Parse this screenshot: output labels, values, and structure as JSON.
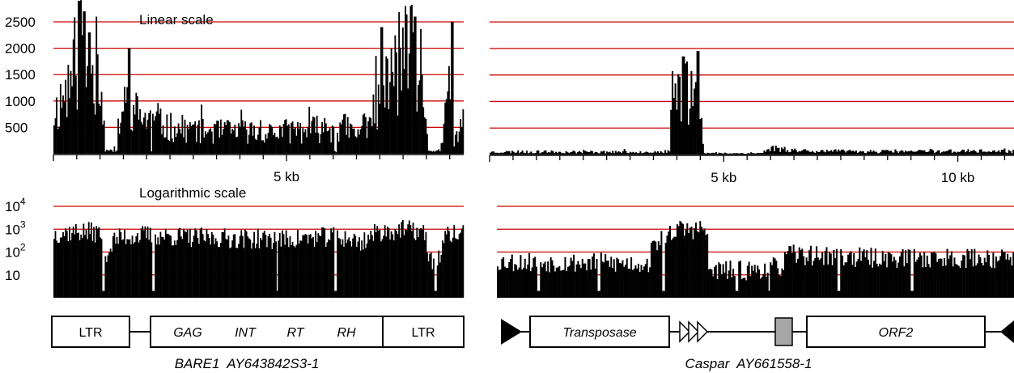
{
  "chart_data": [
    {
      "type": "bar",
      "panel": "top-left",
      "title": "Linear scale",
      "yticks": [
        "2500",
        "2000",
        "1500",
        "1000",
        "500"
      ],
      "ytick_values": [
        2500,
        2000,
        1500,
        1000,
        500
      ],
      "ylim": [
        0,
        2700
      ],
      "xticks": [
        "5 kb"
      ],
      "xtick_values": [
        5.0
      ],
      "xlim": [
        0,
        8.8
      ],
      "grid": true,
      "profile": [
        [
          0.0,
          900
        ],
        [
          0.3,
          1500
        ],
        [
          0.5,
          2200
        ],
        [
          0.8,
          2100
        ],
        [
          1.05,
          1600
        ],
        [
          1.1,
          70
        ],
        [
          1.3,
          70
        ],
        [
          1.4,
          800
        ],
        [
          1.6,
          1200
        ],
        [
          1.8,
          900
        ],
        [
          2.0,
          800
        ],
        [
          2.2,
          700
        ],
        [
          2.5,
          600
        ],
        [
          3.0,
          550
        ],
        [
          3.5,
          500
        ],
        [
          4.0,
          520
        ],
        [
          4.5,
          480
        ],
        [
          5.0,
          520
        ],
        [
          5.5,
          550
        ],
        [
          6.0,
          600
        ],
        [
          6.3,
          600
        ],
        [
          6.5,
          400
        ],
        [
          7.0,
          1200
        ],
        [
          7.4,
          2000
        ],
        [
          7.7,
          2200
        ],
        [
          7.9,
          1300
        ],
        [
          8.05,
          60
        ],
        [
          8.3,
          80
        ],
        [
          8.5,
          1400
        ],
        [
          8.6,
          300
        ],
        [
          8.8,
          600
        ]
      ],
      "peaks": [
        [
          0.55,
          2900
        ],
        [
          0.65,
          2700
        ],
        [
          0.92,
          2600
        ],
        [
          0.78,
          2300
        ],
        [
          1.62,
          2000
        ],
        [
          7.05,
          2400
        ],
        [
          7.55,
          2800
        ],
        [
          7.75,
          2600
        ],
        [
          8.55,
          2500
        ]
      ],
      "dips": [
        1.35,
        2.1,
        6.05
      ],
      "seed": 11
    },
    {
      "type": "bar",
      "panel": "top-right",
      "title": "",
      "yticks": [],
      "ytick_values": [
        2500,
        2000,
        1500,
        1000,
        500
      ],
      "ylim": [
        0,
        2700
      ],
      "xticks": [
        "5 kb",
        "10 kb"
      ],
      "xtick_values": [
        5.0,
        10.0
      ],
      "xlim": [
        0,
        11.2
      ],
      "grid": true,
      "profile": [
        [
          0.0,
          60
        ],
        [
          3.5,
          60
        ],
        [
          3.6,
          50
        ],
        [
          3.85,
          50
        ],
        [
          3.9,
          1400
        ],
        [
          4.3,
          1500
        ],
        [
          4.5,
          1300
        ],
        [
          4.58,
          30
        ],
        [
          5.8,
          30
        ],
        [
          6.0,
          150
        ],
        [
          6.5,
          100
        ],
        [
          7.0,
          80
        ],
        [
          8.0,
          70
        ],
        [
          9.0,
          70
        ],
        [
          10.0,
          80
        ],
        [
          11.2,
          70
        ]
      ],
      "peaks": [
        [
          4.45,
          1950
        ],
        [
          4.15,
          1850
        ]
      ],
      "dips": [],
      "seed": 23
    },
    {
      "type": "bar",
      "panel": "bottom-left",
      "title": "Logarithmic scale",
      "yscale": "log",
      "yticks": [
        "10",
        "10",
        "10",
        "10"
      ],
      "ytick_exponents": [
        "",
        "2",
        "3",
        "4"
      ],
      "ytick_values": [
        10,
        100,
        1000,
        10000
      ],
      "ylim": [
        1,
        10000
      ],
      "xlim": [
        0,
        8.8
      ],
      "grid": true,
      "profile": [
        [
          0.0,
          800
        ],
        [
          0.5,
          1000
        ],
        [
          1.0,
          900
        ],
        [
          1.05,
          100
        ],
        [
          1.2,
          150
        ],
        [
          1.3,
          400
        ],
        [
          1.5,
          600
        ],
        [
          2.0,
          700
        ],
        [
          3.0,
          550
        ],
        [
          4.0,
          500
        ],
        [
          5.0,
          450
        ],
        [
          6.0,
          600
        ],
        [
          6.3,
          500
        ],
        [
          6.6,
          300
        ],
        [
          7.0,
          1000
        ],
        [
          7.5,
          1200
        ],
        [
          7.9,
          1000
        ],
        [
          8.05,
          50
        ],
        [
          8.3,
          80
        ],
        [
          8.5,
          800
        ],
        [
          8.8,
          700
        ]
      ],
      "peaks": [],
      "dips": [
        1.07,
        2.15,
        4.8,
        6.05,
        8.2
      ],
      "seed": 37
    },
    {
      "type": "bar",
      "panel": "bottom-right",
      "title": "",
      "yscale": "log",
      "yticks": [],
      "ytick_values": [
        10,
        100,
        1000,
        10000
      ],
      "ylim": [
        1,
        10000
      ],
      "xlim": [
        0,
        11.2
      ],
      "grid": true,
      "profile": [
        [
          0.0,
          50
        ],
        [
          3.3,
          40
        ],
        [
          3.9,
          1200
        ],
        [
          4.5,
          1300
        ],
        [
          4.58,
          20
        ],
        [
          5.5,
          20
        ],
        [
          6.2,
          30
        ],
        [
          6.3,
          100
        ],
        [
          8.0,
          70
        ],
        [
          9.5,
          70
        ],
        [
          11.2,
          70
        ]
      ],
      "peaks": [],
      "dips": [
        0.9,
        2.2,
        3.6,
        5.2,
        5.9,
        7.4,
        9.0
      ],
      "seed": 53
    }
  ],
  "elements": {
    "bare1": {
      "name": "BARE1  AY643842S3-1",
      "ltr_left": "LTR",
      "gag": "GAG",
      "int": "INT",
      "rt": "RT",
      "rh": "RH",
      "ltr_right": "LTR"
    },
    "caspar": {
      "name": "Caspar  AY661558-1",
      "transposase": "Transposase",
      "orf2": "ORF2"
    }
  },
  "colors": {
    "grid": "#cc0000",
    "bars": "#000000",
    "grey_box": "#a6a6a6"
  }
}
